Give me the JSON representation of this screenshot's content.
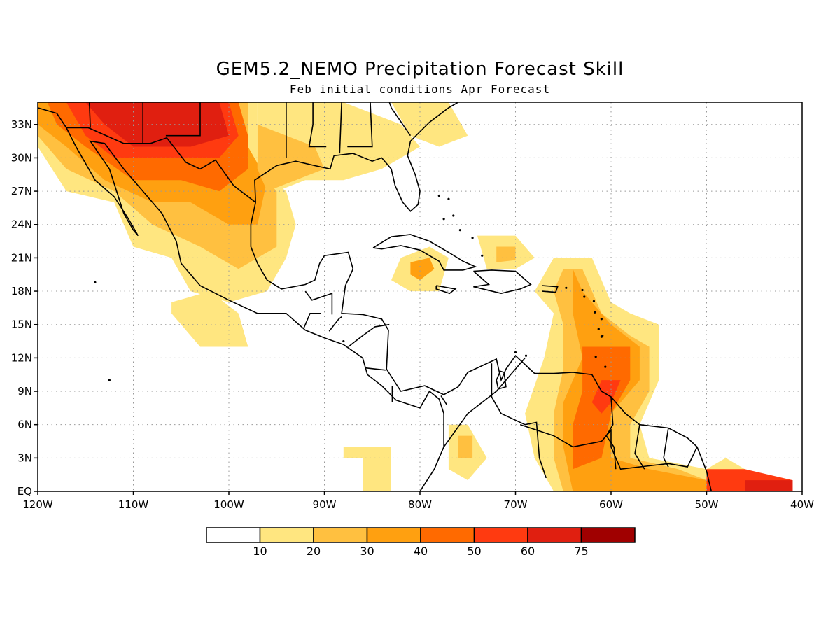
{
  "title": "GEM5.2_NEMO Precipitation Forecast Skill",
  "subtitle": "Feb initial conditions  Apr Forecast",
  "map": {
    "lon_range": [
      -120,
      -40
    ],
    "lat_range": [
      0,
      35
    ],
    "x_ticks": [
      {
        "lon": -120,
        "label": "120W"
      },
      {
        "lon": -110,
        "label": "110W"
      },
      {
        "lon": -100,
        "label": "100W"
      },
      {
        "lon": -90,
        "label": "90W"
      },
      {
        "lon": -80,
        "label": "80W"
      },
      {
        "lon": -70,
        "label": "70W"
      },
      {
        "lon": -60,
        "label": "60W"
      },
      {
        "lon": -50,
        "label": "50W"
      },
      {
        "lon": -40,
        "label": "40W"
      }
    ],
    "y_ticks": [
      {
        "lat": 0,
        "label": "EQ"
      },
      {
        "lat": 3,
        "label": "3N"
      },
      {
        "lat": 6,
        "label": "6N"
      },
      {
        "lat": 9,
        "label": "9N"
      },
      {
        "lat": 12,
        "label": "12N"
      },
      {
        "lat": 15,
        "label": "15N"
      },
      {
        "lat": 18,
        "label": "18N"
      },
      {
        "lat": 21,
        "label": "21N"
      },
      {
        "lat": 24,
        "label": "24N"
      },
      {
        "lat": 27,
        "label": "27N"
      },
      {
        "lat": 30,
        "label": "30N"
      },
      {
        "lat": 33,
        "label": "33N"
      }
    ],
    "grid": true,
    "levels": [
      {
        "min": 10,
        "max": 20,
        "color": "#ffe680"
      },
      {
        "min": 20,
        "max": 30,
        "color": "#ffc040"
      },
      {
        "min": 30,
        "max": 40,
        "color": "#ffa010"
      },
      {
        "min": 40,
        "max": 50,
        "color": "#ff6a00"
      },
      {
        "min": 50,
        "max": 60,
        "color": "#ff3a10"
      },
      {
        "min": 60,
        "max": 75,
        "color": "#e01f10"
      },
      {
        "min": 75,
        "max": 100,
        "color": "#a00000"
      }
    ],
    "skill_regions": [
      {
        "level": 0,
        "poly": [
          [
            -120,
            35
          ],
          [
            -97,
            35
          ],
          [
            -97,
            29
          ],
          [
            -94,
            27
          ],
          [
            -93,
            24
          ],
          [
            -94,
            21
          ],
          [
            -96,
            18
          ],
          [
            -100,
            17
          ],
          [
            -104,
            18
          ],
          [
            -106,
            21
          ],
          [
            -110,
            22
          ],
          [
            -112,
            26
          ],
          [
            -117,
            27
          ],
          [
            -120,
            31
          ]
        ]
      },
      {
        "level": 1,
        "poly": [
          [
            -120,
            35
          ],
          [
            -98,
            35
          ],
          [
            -98,
            30
          ],
          [
            -95,
            27
          ],
          [
            -95,
            22
          ],
          [
            -99,
            20
          ],
          [
            -103,
            22
          ],
          [
            -108,
            24
          ],
          [
            -112,
            27
          ],
          [
            -117,
            29
          ],
          [
            -120,
            32
          ]
        ]
      },
      {
        "level": 2,
        "poly": [
          [
            -120,
            35
          ],
          [
            -99,
            35
          ],
          [
            -98,
            31
          ],
          [
            -96,
            28
          ],
          [
            -97,
            24
          ],
          [
            -100,
            24
          ],
          [
            -104,
            26
          ],
          [
            -108,
            26
          ],
          [
            -113,
            28
          ],
          [
            -117,
            31
          ],
          [
            -120,
            33
          ]
        ]
      },
      {
        "level": 3,
        "poly": [
          [
            -119,
            35
          ],
          [
            -99,
            35
          ],
          [
            -98,
            32
          ],
          [
            -98,
            29
          ],
          [
            -101,
            27
          ],
          [
            -105,
            28
          ],
          [
            -110,
            28
          ],
          [
            -115,
            31
          ],
          [
            -118,
            33
          ]
        ]
      },
      {
        "level": 4,
        "poly": [
          [
            -117,
            35
          ],
          [
            -100,
            35
          ],
          [
            -99,
            32
          ],
          [
            -101,
            30
          ],
          [
            -106,
            30
          ],
          [
            -112,
            30
          ],
          [
            -115,
            32
          ]
        ]
      },
      {
        "level": 5,
        "poly": [
          [
            -115,
            35
          ],
          [
            -101,
            35
          ],
          [
            -100,
            32
          ],
          [
            -104,
            31
          ],
          [
            -110,
            31
          ],
          [
            -113,
            33
          ]
        ]
      },
      {
        "level": 0,
        "poly": [
          [
            -97,
            35
          ],
          [
            -88,
            35
          ],
          [
            -82,
            33
          ],
          [
            -80,
            31
          ],
          [
            -84,
            29
          ],
          [
            -88,
            28
          ],
          [
            -92,
            28
          ],
          [
            -95,
            27
          ],
          [
            -97,
            29
          ]
        ]
      },
      {
        "level": 1,
        "poly": [
          [
            -97,
            33
          ],
          [
            -91,
            31
          ],
          [
            -90,
            29
          ],
          [
            -93,
            28
          ],
          [
            -96,
            27
          ],
          [
            -97,
            29
          ]
        ]
      },
      {
        "level": 0,
        "poly": [
          [
            -83,
            35
          ],
          [
            -77,
            35
          ],
          [
            -75,
            32
          ],
          [
            -78,
            31
          ],
          [
            -81,
            32
          ]
        ]
      },
      {
        "level": 0,
        "poly": [
          [
            -82,
            21
          ],
          [
            -79,
            22
          ],
          [
            -77,
            21
          ],
          [
            -78,
            18
          ],
          [
            -81,
            18
          ],
          [
            -83,
            19
          ]
        ]
      },
      {
        "level": 2,
        "poly": [
          [
            -81,
            20.6
          ],
          [
            -79,
            21
          ],
          [
            -78.5,
            20
          ],
          [
            -80,
            19
          ],
          [
            -81,
            19.5
          ]
        ]
      },
      {
        "level": 0,
        "poly": [
          [
            -74,
            23
          ],
          [
            -70,
            23
          ],
          [
            -68,
            21
          ],
          [
            -70,
            20
          ],
          [
            -73,
            20
          ]
        ]
      },
      {
        "level": 1,
        "poly": [
          [
            -72,
            22
          ],
          [
            -70,
            22
          ],
          [
            -70,
            20.8
          ],
          [
            -72,
            20.6
          ]
        ]
      },
      {
        "level": 0,
        "poly": [
          [
            -66,
            21
          ],
          [
            -62,
            21
          ],
          [
            -60,
            17
          ],
          [
            -58,
            16
          ],
          [
            -55,
            15
          ],
          [
            -55,
            10
          ],
          [
            -57,
            6
          ],
          [
            -56,
            3
          ],
          [
            -50,
            2
          ],
          [
            -48,
            3
          ],
          [
            -46,
            2
          ],
          [
            -43,
            1
          ],
          [
            -41,
            1
          ],
          [
            -41,
            0
          ],
          [
            -66,
            0
          ],
          [
            -68,
            3
          ],
          [
            -69,
            7
          ],
          [
            -67,
            12
          ],
          [
            -66,
            16
          ],
          [
            -68,
            18
          ]
        ]
      },
      {
        "level": 1,
        "poly": [
          [
            -65,
            20
          ],
          [
            -63,
            20
          ],
          [
            -61,
            16
          ],
          [
            -58,
            14
          ],
          [
            -56,
            13
          ],
          [
            -56,
            9
          ],
          [
            -58,
            6
          ],
          [
            -58,
            3
          ],
          [
            -53,
            2
          ],
          [
            -50,
            1
          ],
          [
            -47,
            1
          ],
          [
            -41,
            0.5
          ],
          [
            -41,
            0
          ],
          [
            -65,
            0
          ],
          [
            -66,
            3
          ],
          [
            -66,
            7
          ],
          [
            -65,
            11
          ],
          [
            -65,
            15
          ],
          [
            -66,
            18
          ]
        ]
      },
      {
        "level": 2,
        "poly": [
          [
            -64,
            20
          ],
          [
            -63,
            18
          ],
          [
            -60,
            15
          ],
          [
            -57,
            13
          ],
          [
            -57,
            10
          ],
          [
            -60,
            7
          ],
          [
            -60,
            3
          ],
          [
            -56,
            2
          ],
          [
            -50,
            1
          ],
          [
            -41,
            0
          ],
          [
            -64,
            0
          ],
          [
            -65,
            4
          ],
          [
            -65,
            8
          ],
          [
            -63,
            12
          ],
          [
            -64,
            16
          ]
        ]
      },
      {
        "level": 3,
        "poly": [
          [
            -63,
            13
          ],
          [
            -58,
            13
          ],
          [
            -58,
            10
          ],
          [
            -60,
            7
          ],
          [
            -61,
            3
          ],
          [
            -64,
            2
          ],
          [
            -64,
            6
          ],
          [
            -63,
            9
          ]
        ]
      },
      {
        "level": 4,
        "poly": [
          [
            -61,
            10
          ],
          [
            -59,
            10
          ],
          [
            -60,
            8
          ],
          [
            -61,
            7
          ],
          [
            -62,
            8
          ]
        ]
      },
      {
        "level": 4,
        "poly": [
          [
            -50,
            2
          ],
          [
            -46,
            2
          ],
          [
            -41,
            1
          ],
          [
            -41,
            0
          ],
          [
            -50,
            0
          ]
        ]
      },
      {
        "level": 5,
        "poly": [
          [
            -46,
            1
          ],
          [
            -41,
            1
          ],
          [
            -41,
            0
          ],
          [
            -46,
            0
          ]
        ]
      },
      {
        "level": 1,
        "poly": [
          [
            -103,
            16
          ],
          [
            -99,
            16
          ],
          [
            -98,
            13
          ],
          [
            -103,
            13
          ]
        ]
      },
      {
        "level": 0,
        "poly": [
          [
            -106,
            17
          ],
          [
            -102,
            18
          ],
          [
            -99,
            16
          ],
          [
            -98,
            13
          ],
          [
            -103,
            13
          ],
          [
            -106,
            16
          ]
        ]
      },
      {
        "level": 0,
        "poly": [
          [
            -77,
            6
          ],
          [
            -75,
            6
          ],
          [
            -73,
            3
          ],
          [
            -75,
            1
          ],
          [
            -77,
            2
          ]
        ]
      },
      {
        "level": 1,
        "poly": [
          [
            -76,
            5
          ],
          [
            -74.5,
            5
          ],
          [
            -74.5,
            3
          ],
          [
            -76,
            3
          ]
        ]
      },
      {
        "level": 0,
        "poly": [
          [
            -88,
            4
          ],
          [
            -83,
            4
          ],
          [
            -83,
            0
          ],
          [
            -86,
            0
          ],
          [
            -86,
            3
          ],
          [
            -88,
            3
          ]
        ]
      }
    ]
  },
  "colorbar": {
    "labels": [
      "10",
      "20",
      "30",
      "40",
      "50",
      "60",
      "75"
    ],
    "colors": [
      "#ffffff",
      "#ffe680",
      "#ffc040",
      "#ffa010",
      "#ff6a00",
      "#ff3a10",
      "#e01f10",
      "#a00000"
    ]
  }
}
